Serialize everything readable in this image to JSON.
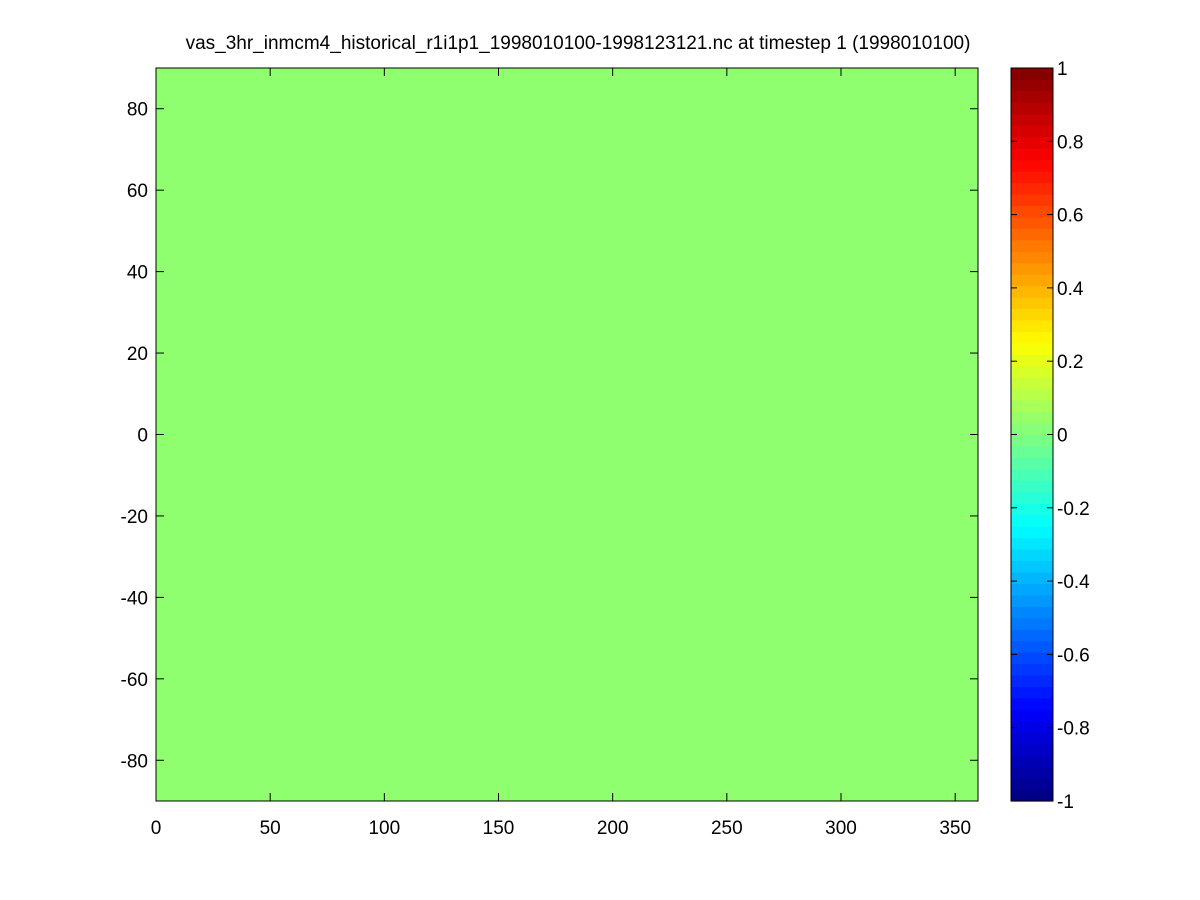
{
  "chart_data": {
    "type": "heatmap",
    "title": "vas_3hr_inmcm4_historical_r1i1p1_1998010100-1998123121.nc at timestep 1 (1998010100)",
    "xlabel": "",
    "ylabel": "",
    "xlim": [
      0,
      360
    ],
    "ylim": [
      -90,
      90
    ],
    "x_ticks": [
      0,
      50,
      100,
      150,
      200,
      250,
      300,
      350
    ],
    "y_ticks": [
      -80,
      -60,
      -40,
      -20,
      0,
      20,
      40,
      60,
      80
    ],
    "field_value": 0,
    "field_color": "#8fff70",
    "colorbar": {
      "colormap": "jet",
      "clim": [
        -1,
        1
      ],
      "ticks": [
        -1,
        -0.8,
        -0.6,
        -0.4,
        -0.2,
        0,
        0.2,
        0.4,
        0.6,
        0.8,
        1
      ],
      "tick_labels": [
        "-1",
        "-0.8",
        "-0.6",
        "-0.4",
        "-0.2",
        "0",
        "0.2",
        "0.4",
        "0.6",
        "0.8",
        "1"
      ]
    },
    "grid": false
  }
}
